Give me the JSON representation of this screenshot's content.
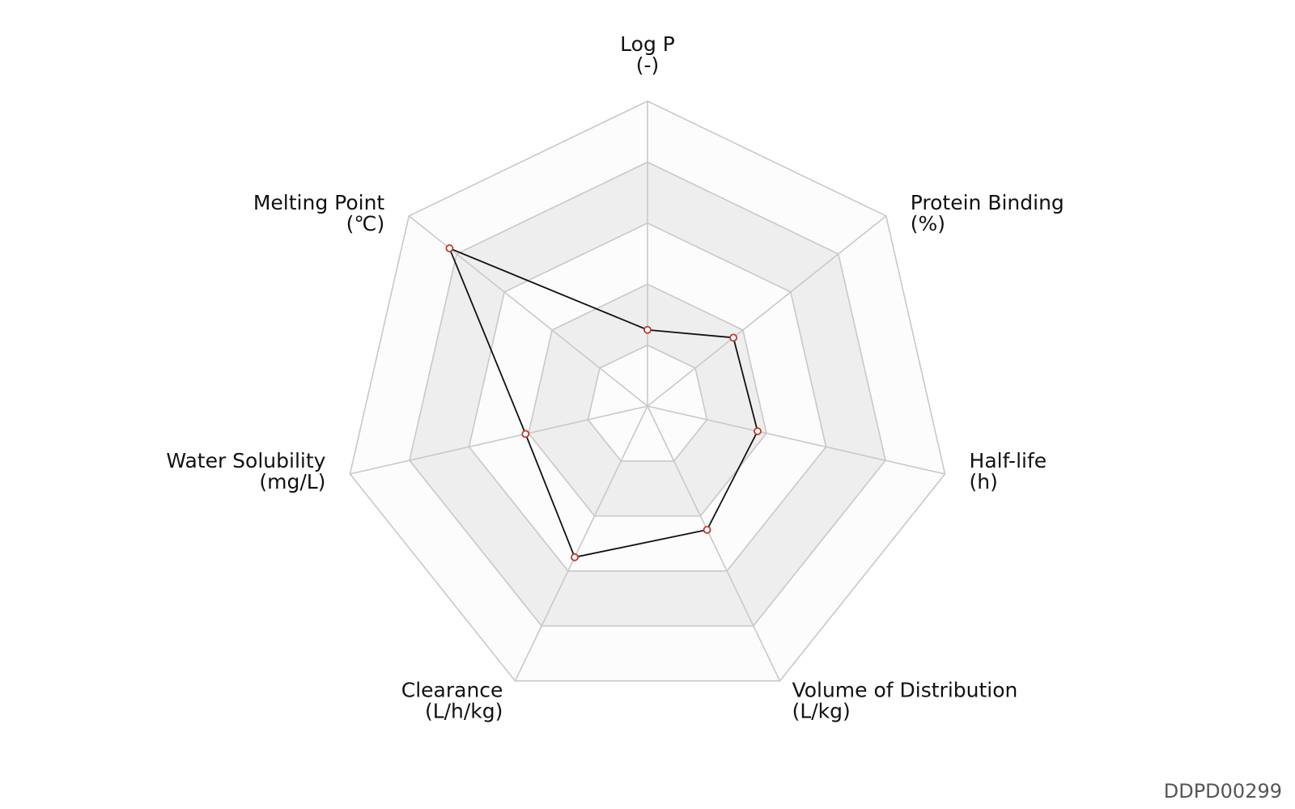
{
  "chart_data": {
    "type": "radar",
    "axes": [
      {
        "name": "Log P",
        "unit": "(-)"
      },
      {
        "name": "Protein Binding",
        "unit": "(%)"
      },
      {
        "name": "Half-life",
        "unit": "(h)"
      },
      {
        "name": "Volume of Distribution",
        "unit": "(L/kg)"
      },
      {
        "name": "Clearance",
        "unit": "(L/h/kg)"
      },
      {
        "name": "Water Solubility",
        "unit": "(mg/L)"
      },
      {
        "name": "Melting Point",
        "unit": "(℃)"
      }
    ],
    "series": [
      {
        "values": [
          0.25,
          0.36,
          0.37,
          0.45,
          0.55,
          0.41,
          0.83
        ]
      }
    ],
    "scale": [
      0,
      1
    ],
    "rings": 5,
    "grid": true,
    "colors": {
      "band_shaded": "#eeeeee",
      "band_light": "#fcfcfc",
      "grid": "#c8c8c8",
      "line": "#111111",
      "marker": "#c0392b"
    }
  },
  "watermark": "DDPD00299"
}
